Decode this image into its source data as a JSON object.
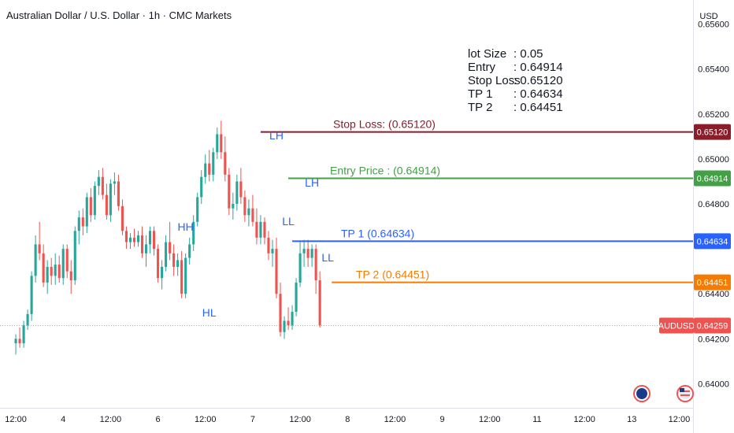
{
  "title": "Australian Dollar / U.S. Dollar · 1h · CMC Markets",
  "currency": "USD",
  "info": [
    {
      "label": "lot Size",
      "value": ": 0.05"
    },
    {
      "label": "Entry",
      "value": ": 0.64914"
    },
    {
      "label": "Stop Loss",
      "value": ": 0.65120"
    },
    {
      "label": "TP 1",
      "value": ": 0.64634"
    },
    {
      "label": "TP 2",
      "value": ": 0.64451"
    }
  ],
  "chart_data": {
    "type": "candlestick",
    "symbol": "AUDUSD",
    "last_price": 0.64259,
    "ylim": [
      0.639,
      0.657
    ],
    "y_ticks": [
      "0.65600",
      "0.65400",
      "0.65200",
      "0.65000",
      "0.64800",
      "0.64400",
      "0.64200",
      "0.64000"
    ],
    "x_ticks": [
      {
        "label": "12:00",
        "t": 0
      },
      {
        "label": "4",
        "t": 12
      },
      {
        "label": "12:00",
        "t": 24
      },
      {
        "label": "6",
        "t": 36
      },
      {
        "label": "12:00",
        "t": 48
      },
      {
        "label": "7",
        "t": 60
      },
      {
        "label": "12:00",
        "t": 72
      },
      {
        "label": "8",
        "t": 84
      },
      {
        "label": "12:00",
        "t": 96
      },
      {
        "label": "9",
        "t": 108
      },
      {
        "label": "12:00",
        "t": 120
      },
      {
        "label": "11",
        "t": 132
      },
      {
        "label": "12:00",
        "t": 144
      },
      {
        "label": "13",
        "t": 156
      },
      {
        "label": "12:00",
        "t": 168
      }
    ],
    "x_range": [
      -4.0,
      171.5
    ],
    "candles": [
      [
        0.6418,
        0.6422,
        0.6413,
        0.642
      ],
      [
        0.642,
        0.6425,
        0.6416,
        0.6418
      ],
      [
        0.6418,
        0.6428,
        0.6416,
        0.6426
      ],
      [
        0.6426,
        0.6433,
        0.6424,
        0.6431
      ],
      [
        0.6431,
        0.645,
        0.6428,
        0.6448
      ],
      [
        0.6448,
        0.6466,
        0.6445,
        0.6462
      ],
      [
        0.6462,
        0.6472,
        0.6455,
        0.6458
      ],
      [
        0.6458,
        0.6462,
        0.6443,
        0.6445
      ],
      [
        0.6445,
        0.6455,
        0.644,
        0.6452
      ],
      [
        0.6452,
        0.6456,
        0.6444,
        0.6448
      ],
      [
        0.6448,
        0.6458,
        0.6444,
        0.6453
      ],
      [
        0.6453,
        0.6457,
        0.6445,
        0.6447
      ],
      [
        0.6447,
        0.6462,
        0.6444,
        0.646
      ],
      [
        0.646,
        0.6462,
        0.6447,
        0.645
      ],
      [
        0.645,
        0.6455,
        0.644,
        0.6446
      ],
      [
        0.6446,
        0.647,
        0.6444,
        0.6468
      ],
      [
        0.6468,
        0.6477,
        0.6462,
        0.6474
      ],
      [
        0.6474,
        0.6478,
        0.6466,
        0.647
      ],
      [
        0.647,
        0.6485,
        0.6467,
        0.6483
      ],
      [
        0.6483,
        0.6487,
        0.6472,
        0.6475
      ],
      [
        0.6475,
        0.649,
        0.6473,
        0.6488
      ],
      [
        0.6488,
        0.6495,
        0.6484,
        0.6492
      ],
      [
        0.6492,
        0.6496,
        0.6482,
        0.6484
      ],
      [
        0.6484,
        0.6489,
        0.6473,
        0.6475
      ],
      [
        0.6475,
        0.6491,
        0.6472,
        0.6489
      ],
      [
        0.6489,
        0.6494,
        0.6484,
        0.649
      ],
      [
        0.649,
        0.6493,
        0.6477,
        0.6479
      ],
      [
        0.6479,
        0.6482,
        0.6466,
        0.6468
      ],
      [
        0.6468,
        0.647,
        0.646,
        0.6463
      ],
      [
        0.6463,
        0.6467,
        0.646,
        0.6465
      ],
      [
        0.6465,
        0.6469,
        0.6461,
        0.6463
      ],
      [
        0.6463,
        0.6468,
        0.6461,
        0.6466
      ],
      [
        0.6466,
        0.647,
        0.6456,
        0.6458
      ],
      [
        0.6458,
        0.6466,
        0.6452,
        0.6462
      ],
      [
        0.6462,
        0.647,
        0.6458,
        0.6468
      ],
      [
        0.6468,
        0.647,
        0.6457,
        0.646
      ],
      [
        0.646,
        0.6462,
        0.6445,
        0.6447
      ],
      [
        0.6447,
        0.6455,
        0.6442,
        0.6452
      ],
      [
        0.6452,
        0.6466,
        0.645,
        0.6463
      ],
      [
        0.6463,
        0.6472,
        0.6455,
        0.6458
      ],
      [
        0.6458,
        0.6462,
        0.6448,
        0.6452
      ],
      [
        0.6452,
        0.6458,
        0.6448,
        0.6455
      ],
      [
        0.6455,
        0.6459,
        0.6438,
        0.644
      ],
      [
        0.644,
        0.6458,
        0.6438,
        0.6456
      ],
      [
        0.6456,
        0.6465,
        0.6453,
        0.6462
      ],
      [
        0.6462,
        0.6475,
        0.6459,
        0.6472
      ],
      [
        0.6472,
        0.6485,
        0.647,
        0.6483
      ],
      [
        0.6483,
        0.6495,
        0.648,
        0.6492
      ],
      [
        0.6492,
        0.6502,
        0.6489,
        0.6498
      ],
      [
        0.6498,
        0.6504,
        0.649,
        0.6493
      ],
      [
        0.6493,
        0.6505,
        0.649,
        0.6503
      ],
      [
        0.6503,
        0.6514,
        0.65,
        0.6511
      ],
      [
        0.6511,
        0.6517,
        0.65,
        0.6503
      ],
      [
        0.6503,
        0.651,
        0.649,
        0.6493
      ],
      [
        0.6493,
        0.6496,
        0.6475,
        0.6478
      ],
      [
        0.6478,
        0.6485,
        0.6473,
        0.648
      ],
      [
        0.648,
        0.6493,
        0.6477,
        0.649
      ],
      [
        0.649,
        0.6496,
        0.648,
        0.6483
      ],
      [
        0.6483,
        0.6486,
        0.6472,
        0.6475
      ],
      [
        0.6475,
        0.6482,
        0.647,
        0.6478
      ],
      [
        0.6478,
        0.6484,
        0.647,
        0.6472
      ],
      [
        0.6472,
        0.6478,
        0.6462,
        0.6465
      ],
      [
        0.6465,
        0.6475,
        0.6462,
        0.6472
      ],
      [
        0.6472,
        0.6474,
        0.6462,
        0.6465
      ],
      [
        0.6465,
        0.6468,
        0.6455,
        0.6458
      ],
      [
        0.6458,
        0.6464,
        0.6452,
        0.646
      ],
      [
        0.646,
        0.6465,
        0.6438,
        0.644
      ],
      [
        0.644,
        0.6445,
        0.6421,
        0.6423
      ],
      [
        0.6423,
        0.643,
        0.642,
        0.6428
      ],
      [
        0.6428,
        0.6434,
        0.6424,
        0.6426
      ],
      [
        0.6426,
        0.6435,
        0.6424,
        0.6432
      ],
      [
        0.6432,
        0.6447,
        0.643,
        0.6445
      ],
      [
        0.6445,
        0.6463,
        0.6443,
        0.6458
      ],
      [
        0.6458,
        0.6464,
        0.6452,
        0.646
      ],
      [
        0.646,
        0.6464,
        0.6452,
        0.6456
      ],
      [
        0.6456,
        0.6462,
        0.6452,
        0.646
      ],
      [
        0.646,
        0.6462,
        0.644,
        0.6446
      ],
      [
        0.6446,
        0.645,
        0.6425,
        0.6426
      ]
    ],
    "levels": [
      {
        "name": "stop_loss",
        "label": "Stop Loss: (0.65120)",
        "price": 0.6512,
        "price_text": "0.65120",
        "color": "#8b1c2a"
      },
      {
        "name": "entry",
        "label": "Entry Price : (0.64914)",
        "price": 0.64914,
        "price_text": "0.64914",
        "color": "#43a047"
      },
      {
        "name": "tp1",
        "label": "TP 1 (0.64634)",
        "price": 0.64634,
        "price_text": "0.64634",
        "color": "#2962ff"
      },
      {
        "name": "tp2",
        "label": "TP 2 (0.64451)",
        "price": 0.64451,
        "price_text": "0.64451",
        "color": "#f57c00"
      }
    ],
    "swing_labels": [
      {
        "text": "HH",
        "t": 61
      },
      {
        "text": "HL",
        "t": 67
      },
      {
        "text": "LH",
        "t": 84
      },
      {
        "text": "LH",
        "t": 93
      },
      {
        "text": "LL",
        "t": 87
      },
      {
        "text": "LL",
        "t": 97
      }
    ],
    "colors": {
      "up": "#26a69a",
      "down": "#ef5350",
      "price_line": "#ef5350"
    }
  }
}
